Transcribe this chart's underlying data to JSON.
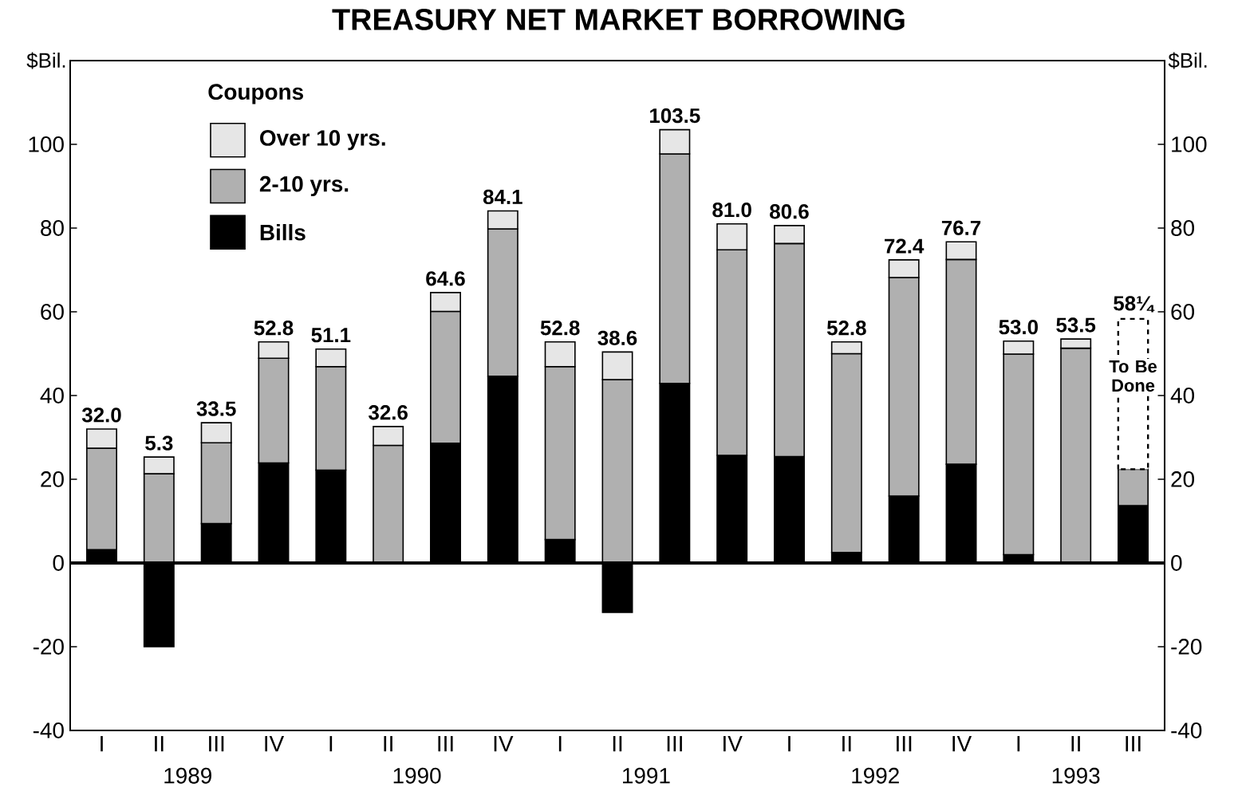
{
  "chart_data": {
    "type": "bar",
    "stacked": true,
    "title": "TREASURY NET MARKET BORROWING",
    "ylabel": "$Bil.",
    "y2label": "$Bil.",
    "legend_title": "Coupons",
    "legend": "top left",
    "categories": [
      "I",
      "II",
      "III",
      "IV",
      "I",
      "II",
      "III",
      "IV",
      "I",
      "II",
      "III",
      "IV",
      "I",
      "II",
      "III",
      "IV",
      "I",
      "II",
      "III"
    ],
    "series": [
      {
        "name": "Bills",
        "color": "#000000",
        "values": [
          3.2,
          -20.0,
          9.4,
          23.9,
          22.2,
          0,
          28.6,
          44.6,
          5.6,
          -11.8,
          42.9,
          25.7,
          25.4,
          2.5,
          16.0,
          23.6,
          2.0,
          0,
          13.7
        ]
      },
      {
        "name": "2-10 yrs.",
        "color": "#b0b0b0",
        "values": [
          24.2,
          21.3,
          19.3,
          25.0,
          24.7,
          28.1,
          31.5,
          35.2,
          41.3,
          43.8,
          54.8,
          49.1,
          50.9,
          47.5,
          52.2,
          48.9,
          47.9,
          51.3,
          8.7
        ]
      },
      {
        "name": "Over 10 yrs.",
        "color": "#e6e6e6",
        "values": [
          4.6,
          4.0,
          4.8,
          3.9,
          4.2,
          4.5,
          4.5,
          4.3,
          5.9,
          6.6,
          5.8,
          6.2,
          4.3,
          2.8,
          4.2,
          4.2,
          3.1,
          2.2,
          null
        ]
      },
      {
        "name": "To Be Done",
        "color": "#ffffff",
        "line_style": "dashed",
        "values": [
          null,
          null,
          null,
          null,
          null,
          null,
          null,
          null,
          null,
          null,
          null,
          null,
          null,
          null,
          null,
          null,
          null,
          null,
          35.9
        ]
      }
    ],
    "totals": [
      "32.0",
      "5.3",
      "33.5",
      "52.8",
      "51.1",
      "32.6",
      "64.6",
      "84.1",
      "52.8",
      "38.6",
      "103.5",
      "81.0",
      "80.6",
      "52.8",
      "72.4",
      "76.7",
      "53.0",
      "53.5",
      "58¼"
    ],
    "annotations": [
      "1989",
      "1990",
      "1991",
      "1992",
      "1993"
    ],
    "ylim": [
      -40,
      120
    ],
    "yticks": [
      -40,
      -20,
      0,
      20,
      40,
      60,
      80,
      100
    ],
    "y2lim": [
      -40,
      120
    ],
    "y2ticks": [
      -40,
      -20,
      0,
      20,
      40,
      60,
      80,
      100
    ]
  }
}
